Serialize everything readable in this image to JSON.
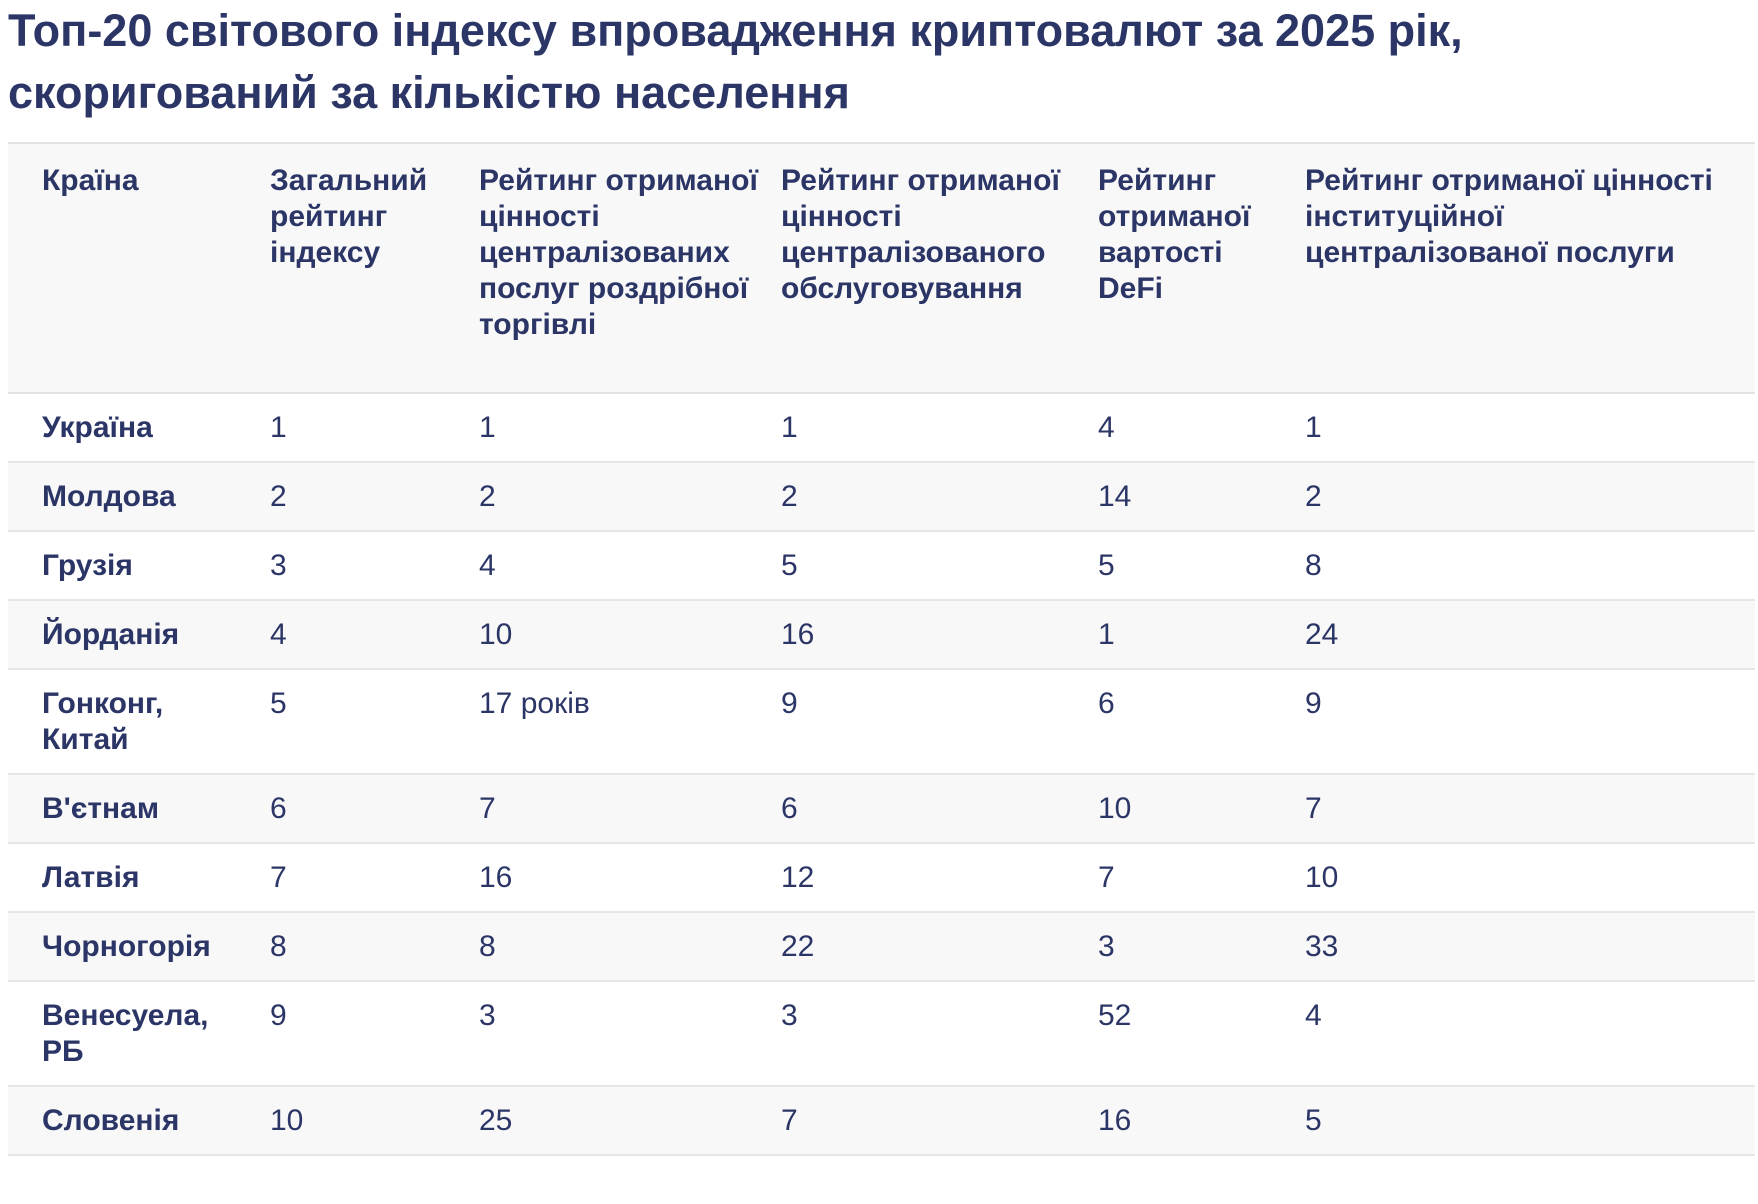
{
  "title": "Топ-20 світового індексу впровадження криптовалют за 2025 рік, скоригований за кількістю населення",
  "table": {
    "headers": [
      "Країна",
      "Загальний рейтинг індексу",
      "Рейтинг отриманої цінності централізованих послуг роздрібної торгівлі",
      "Рейтинг отриманої цінності централізованого обслуговування",
      "Рейтинг отриманої вартості DeFi",
      "Рейтинг отриманої цінності інституційної централізованої послуги"
    ],
    "rows": [
      [
        "Україна",
        "1",
        "1",
        "1",
        "4",
        "1"
      ],
      [
        "Молдова",
        "2",
        "2",
        "2",
        "14",
        "2"
      ],
      [
        "Грузія",
        "3",
        "4",
        "5",
        "5",
        "8"
      ],
      [
        "Йорданія",
        "4",
        "10",
        "16",
        "1",
        "24"
      ],
      [
        "Гонконг, Китай",
        "5",
        "17 років",
        "9",
        "6",
        "9"
      ],
      [
        "В'єтнам",
        "6",
        "7",
        "6",
        "10",
        "7"
      ],
      [
        "Латвія",
        "7",
        "16",
        "12",
        "7",
        "10"
      ],
      [
        "Чорногорія",
        "8",
        "8",
        "22",
        "3",
        "33"
      ],
      [
        "Венесуела, РБ",
        "9",
        "3",
        "3",
        "52",
        "4"
      ],
      [
        "Словенія",
        "10",
        "25",
        "7",
        "16",
        "5"
      ]
    ]
  }
}
